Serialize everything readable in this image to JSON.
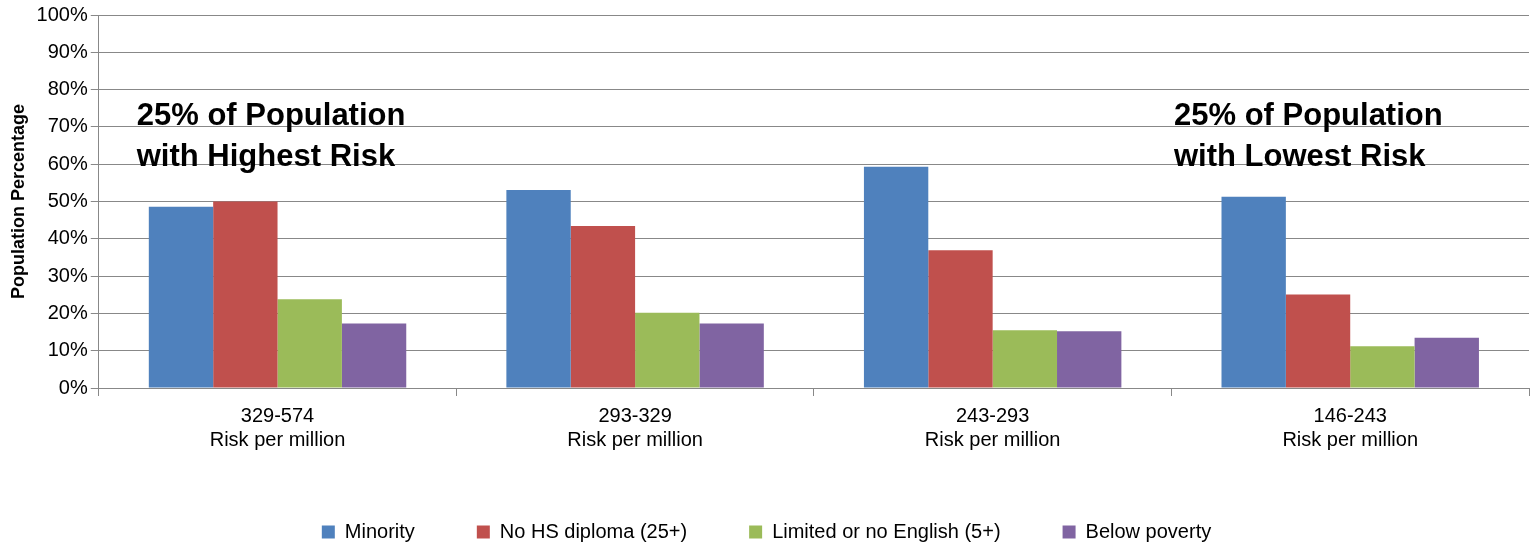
{
  "chart_data": {
    "type": "bar",
    "ylabel": "Population Percentage",
    "categories": [
      "329-574\nRisk per million",
      "293-329\nRisk per million",
      "243-293\nRisk per million",
      "146-243\nRisk per million"
    ],
    "series": [
      {
        "name": "Minority",
        "color": "#4f81bd",
        "values": [
          48.6,
          53.1,
          59.3,
          51.3
        ]
      },
      {
        "name": "No HS diploma (25+)",
        "color": "#c0504d",
        "values": [
          50.0,
          43.4,
          36.9,
          25.1
        ]
      },
      {
        "name": "Limited or no English (5+)",
        "color": "#9bbb59",
        "values": [
          23.8,
          20.2,
          15.5,
          11.2
        ]
      },
      {
        "name": "Below poverty",
        "color": "#8064a2",
        "values": [
          17.3,
          17.3,
          15.2,
          13.5
        ]
      }
    ],
    "ylim": [
      0,
      100
    ],
    "yticks": [
      {
        "value": 0,
        "label": "0%"
      },
      {
        "value": 10,
        "label": "10%"
      },
      {
        "value": 20,
        "label": "20%"
      },
      {
        "value": 30,
        "label": "30%"
      },
      {
        "value": 40,
        "label": "40%"
      },
      {
        "value": 50,
        "label": "50%"
      },
      {
        "value": 60,
        "label": "60%"
      },
      {
        "value": 70,
        "label": "70%"
      },
      {
        "value": 80,
        "label": "80%"
      },
      {
        "value": 90,
        "label": "90%"
      },
      {
        "value": 100,
        "label": "100%"
      }
    ],
    "grid": "y",
    "legend": "bottom",
    "annotations": [
      "25% of Population\nwith Highest Risk",
      "25% of Population\nwith Lowest Risk"
    ]
  }
}
